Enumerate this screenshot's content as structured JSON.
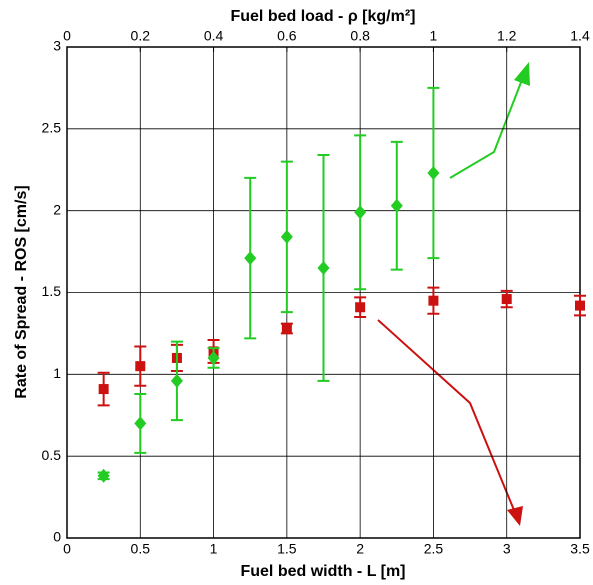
{
  "chart_data": {
    "type": "scatter",
    "x_label": "Fuel bed width - L [m]",
    "x2_label": "Fuel bed load - ρ [kg/m²]",
    "y_label": "Rate of Spread - ROS [cm/s]",
    "xlim": [
      0,
      3.5
    ],
    "xticks": [
      0,
      0.5,
      1,
      1.5,
      2,
      2.5,
      3,
      3.5
    ],
    "x2lim": [
      0,
      1.4
    ],
    "x2ticks": [
      0,
      0.2,
      0.4,
      0.6,
      0.8,
      1,
      1.2,
      1.4
    ],
    "ylim": [
      0,
      3
    ],
    "yticks": [
      0,
      0.5,
      1,
      1.5,
      2,
      2.5,
      3
    ],
    "grid": true,
    "series": [
      {
        "marker": "square",
        "color": "#cc1111",
        "x": [
          0.25,
          0.5,
          0.75,
          1,
          1.5,
          2,
          2.5,
          3,
          3.5
        ],
        "values": [
          0.91,
          1.05,
          1.1,
          1.14,
          1.28,
          1.41,
          1.45,
          1.46,
          1.42
        ],
        "errors": [
          0.1,
          0.12,
          0.08,
          0.07,
          0.03,
          0.06,
          0.08,
          0.05,
          0.06
        ]
      },
      {
        "marker": "diamond",
        "color": "#22cc22",
        "x": [
          0.25,
          0.5,
          0.75,
          1,
          1.25,
          1.5,
          1.75,
          2,
          2.25,
          2.5
        ],
        "values": [
          0.38,
          0.7,
          0.96,
          1.1,
          1.71,
          1.84,
          1.65,
          1.99,
          2.03,
          2.23
        ],
        "errors": [
          0.02,
          0.18,
          0.24,
          0.06,
          0.49,
          0.46,
          0.69,
          0.47,
          0.39,
          0.52
        ]
      }
    ]
  }
}
